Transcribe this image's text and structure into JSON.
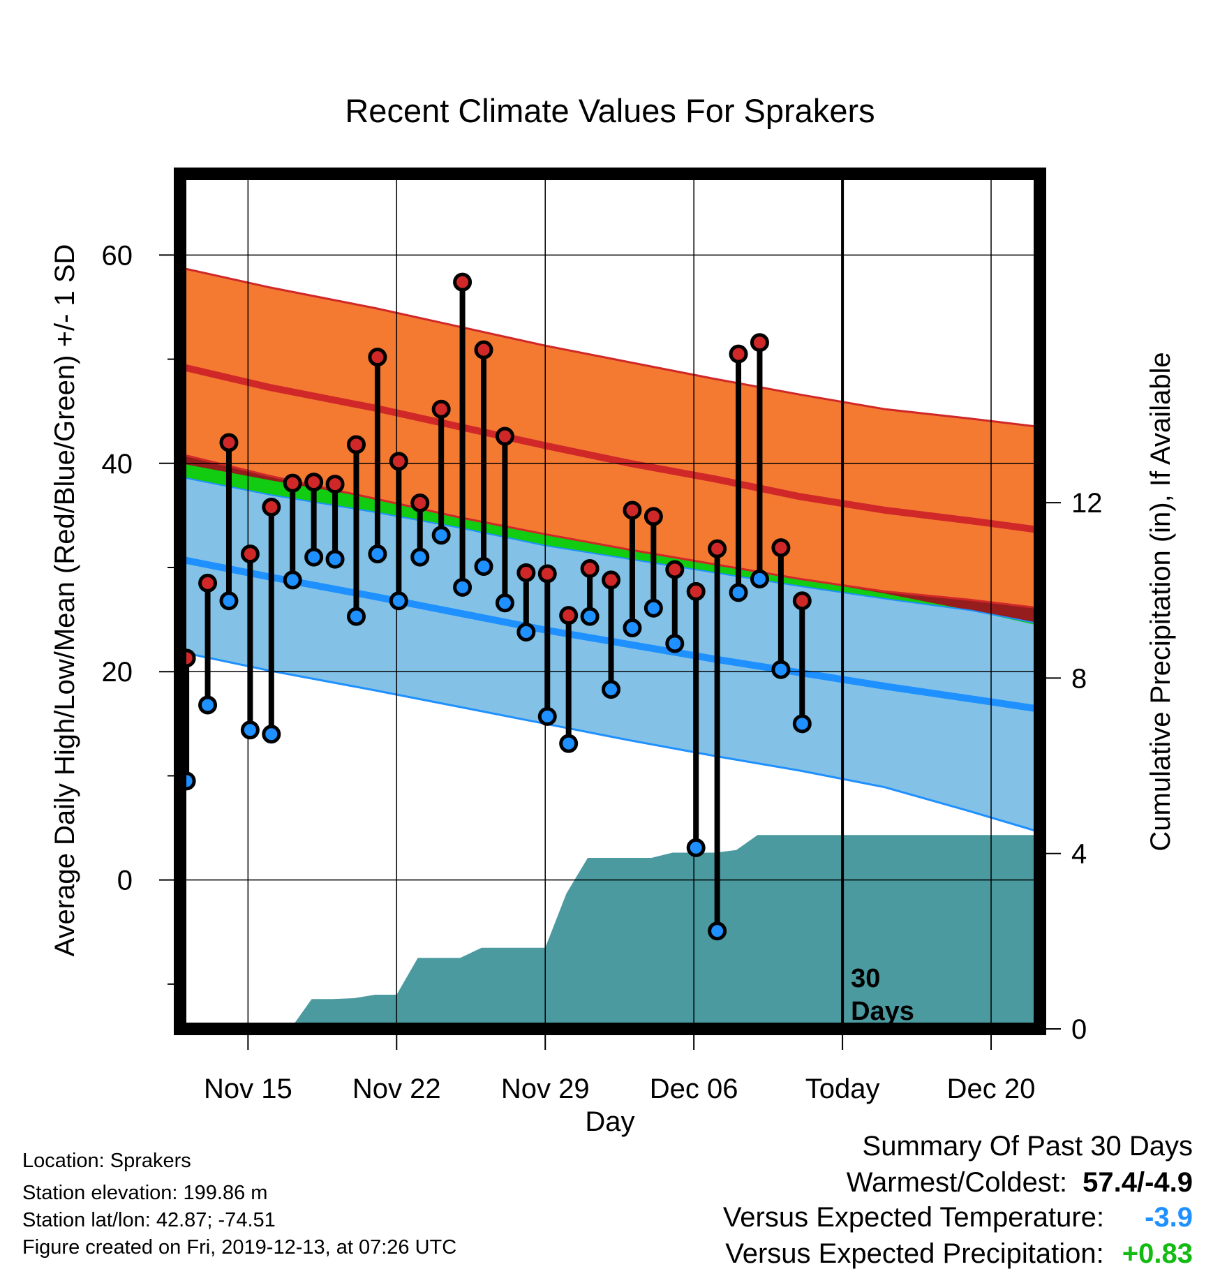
{
  "chart_data": {
    "type": "line",
    "title": "Recent Climate Values For Sprakers",
    "xlabel": "Day",
    "ylabel": "Average Daily High/Low/Mean (Red/Blue/Green) +/- 1 SD",
    "y2label": "Cumulative Precipitation (in), If Available",
    "x_tick_labels": [
      "Nov 15",
      "Nov 22",
      "Nov 29",
      "Dec 06",
      "Today",
      "Dec 20"
    ],
    "x_tick_days": [
      2,
      9,
      16,
      23,
      30,
      37
    ],
    "x_range_days": [
      -1.2,
      39.3
    ],
    "y_ticks": [
      0,
      20,
      40,
      60
    ],
    "y_minor_ticks": [
      -10,
      10,
      30,
      50
    ],
    "ylim": [
      -14.3,
      67.8
    ],
    "y2_ticks": [
      0,
      4,
      8,
      12
    ],
    "y2lim": [
      0,
      19.5
    ],
    "today_day": 30,
    "today_label": [
      "30",
      "Days"
    ],
    "grid": true,
    "climatology": {
      "days": [
        -1.2,
        3,
        8,
        12,
        16,
        20,
        24,
        28,
        32,
        36,
        39.3
      ],
      "high_mean": [
        49.3,
        47.3,
        45.3,
        43.5,
        41.7,
        40.0,
        38.5,
        36.8,
        35.5,
        34.5,
        33.6
      ],
      "high_plus_sd": [
        58.8,
        56.9,
        54.9,
        53.1,
        51.3,
        49.7,
        48.1,
        46.6,
        45.2,
        44.3,
        43.5
      ],
      "high_minus_sd": [
        40.9,
        38.8,
        36.6,
        34.8,
        33.2,
        31.7,
        30.3,
        28.9,
        27.7,
        26.9,
        26.1
      ],
      "mean": [
        39.2,
        37.6,
        35.8,
        34.2,
        32.5,
        31.0,
        29.5,
        28.1,
        26.7,
        25.1,
        23.6
      ],
      "low_mean": [
        30.8,
        29.1,
        27.2,
        25.6,
        24.0,
        22.6,
        21.2,
        19.9,
        18.6,
        17.4,
        16.4
      ],
      "low_plus_sd": [
        38.7,
        37.0,
        35.3,
        33.8,
        32.1,
        30.8,
        29.5,
        28.2,
        27.0,
        25.9,
        24.6
      ],
      "low_minus_sd": [
        21.9,
        20.1,
        18.2,
        16.6,
        15.0,
        13.4,
        11.9,
        10.5,
        8.9,
        6.6,
        4.6
      ],
      "colors": {
        "high_band": "#f47a32",
        "high_line": "#d02828",
        "low_band": "#83c2e6",
        "low_line": "#1e90ff",
        "mean_band": "#12cc12",
        "mean_gap": "#951d1d"
      }
    },
    "observations": {
      "days": [
        -0.9,
        0.1,
        1.1,
        2.1,
        3.1,
        4.1,
        5.1,
        6.1,
        7.1,
        8.1,
        9.1,
        10.1,
        11.1,
        12.1,
        13.1,
        14.1,
        15.1,
        16.1,
        17.1,
        18.1,
        19.1,
        20.1,
        21.1,
        22.1,
        23.1,
        24.1,
        25.1,
        26.1,
        27.1,
        28.1
      ],
      "high": [
        21.3,
        28.5,
        42.0,
        31.3,
        35.8,
        38.1,
        38.2,
        38.0,
        41.8,
        50.2,
        40.2,
        36.2,
        45.2,
        57.4,
        50.9,
        42.6,
        29.5,
        29.4,
        25.4,
        29.9,
        28.8,
        35.5,
        34.9,
        29.8,
        27.7,
        31.8,
        50.5,
        51.6,
        31.9,
        26.8
      ],
      "low": [
        9.5,
        16.8,
        26.8,
        14.4,
        14.0,
        28.8,
        31.0,
        30.8,
        25.3,
        31.3,
        26.8,
        31.0,
        33.1,
        28.1,
        30.1,
        26.6,
        23.8,
        15.7,
        13.1,
        25.3,
        18.3,
        24.2,
        26.1,
        22.7,
        3.1,
        -4.9,
        27.6,
        28.9,
        20.2,
        15.0
      ],
      "colors": {
        "high": "#d02828",
        "low": "#1e90ff",
        "stem": "#000000"
      }
    },
    "precipitation": {
      "color": "#4a9aa0",
      "days": [
        -1.2,
        4.0,
        5.0,
        6.0,
        7.0,
        8.0,
        9.0,
        10.0,
        11.0,
        12.0,
        13.0,
        14.0,
        15.0,
        16.0,
        17.0,
        18.0,
        19.0,
        20.0,
        21.0,
        22.0,
        23.0,
        24.0,
        25.0,
        26.0,
        27.0,
        28.0,
        39.3
      ],
      "cumulative_in": [
        0,
        0,
        0.68,
        0.68,
        0.7,
        0.78,
        0.78,
        1.62,
        1.62,
        1.62,
        1.85,
        1.85,
        1.85,
        1.85,
        3.09,
        3.9,
        3.9,
        3.9,
        3.9,
        4.02,
        4.02,
        4.02,
        4.08,
        4.42,
        4.42,
        4.42,
        4.42
      ]
    }
  },
  "footer": {
    "location": "Location: Sprakers",
    "elevation": "Station elevation: 199.86 m",
    "latlon": "Station lat/lon: 42.87; -74.51",
    "created": "Figure created on Fri, 2019-12-13, at 07:26 UTC"
  },
  "summary": {
    "title": "Summary Of Past 30 Days",
    "warmest_label": "Warmest/Coldest:",
    "warmest_value": "57.4/-4.9",
    "temp_label": "Versus Expected Temperature:",
    "temp_value": "-3.9",
    "temp_color": "#1e90ff",
    "precip_label": "Versus Expected Precipitation:",
    "precip_value": "+0.83",
    "precip_color": "#12bb12"
  }
}
